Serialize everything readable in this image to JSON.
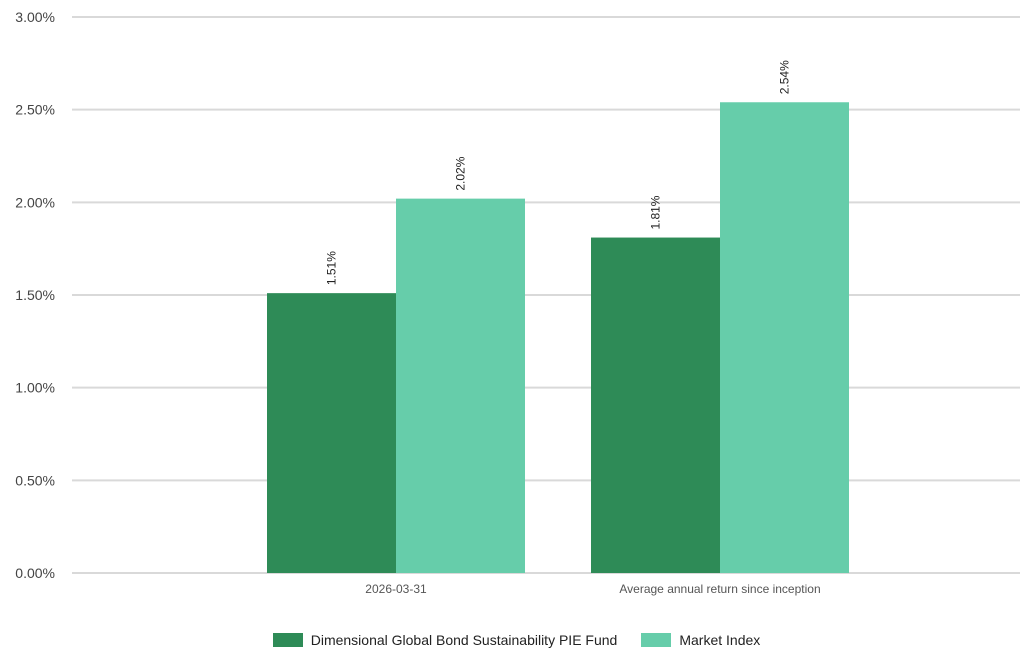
{
  "chart_data": {
    "type": "bar",
    "categories": [
      "2026-03-31",
      "Average annual return since inception"
    ],
    "series": [
      {
        "name": "Dimensional Global Bond Sustainability PIE Fund",
        "values": [
          1.51,
          1.81
        ],
        "color": "#2e8b57"
      },
      {
        "name": "Market Index",
        "values": [
          2.02,
          2.54
        ],
        "color": "#66cdaa"
      }
    ],
    "data_labels": [
      [
        "1.51%",
        "1.81%"
      ],
      [
        "2.02%",
        "2.54%"
      ]
    ],
    "ylim": [
      0,
      3
    ],
    "yticks": [
      "0.00%",
      "0.50%",
      "1.00%",
      "1.50%",
      "2.00%",
      "2.50%",
      "3.00%"
    ],
    "ytick_values": [
      0,
      0.5,
      1,
      1.5,
      2,
      2.5,
      3
    ],
    "grid": true,
    "legend_position": "bottom-center",
    "title": "",
    "xlabel": "",
    "ylabel": ""
  }
}
